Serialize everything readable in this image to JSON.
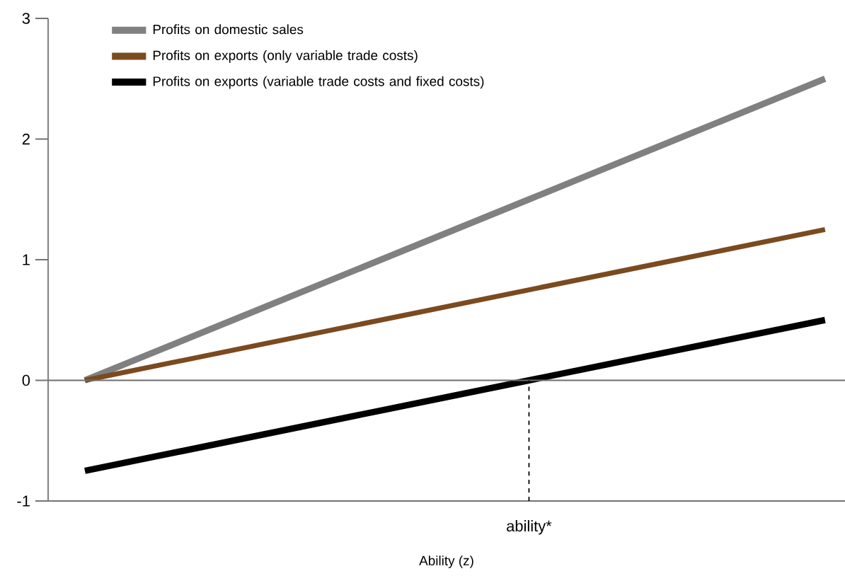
{
  "chart_data": {
    "type": "line",
    "xlabel": "Ability (z)",
    "categories": [
      null,
      null,
      null,
      "ability*",
      null,
      null
    ],
    "series": [
      {
        "name": "Profits on domestic sales",
        "color": "#808080",
        "values": [
          0,
          0.5,
          1,
          1.5,
          2,
          2.5
        ]
      },
      {
        "name": "Profits on exports (only variable trade costs)",
        "color": "#7b4a1e",
        "values": [
          0,
          0.25,
          0.5,
          0.75,
          1,
          1.25
        ]
      },
      {
        "name": "Profits on exports (variable trade costs and fixed costs)",
        "color": "#000000",
        "values": [
          -0.75,
          -0.5,
          -0.25,
          0,
          0.25,
          0.5
        ]
      }
    ],
    "ylim": [
      -1,
      3
    ],
    "yticks": [
      -1,
      0,
      1,
      2,
      3
    ],
    "ref_lines": [
      {
        "axis": "y",
        "value": 0,
        "color": "#6e6e6e",
        "line_style": "solid"
      },
      {
        "axis": "x",
        "value": "ability*",
        "color": "#000000",
        "line_style": "dashed"
      }
    ],
    "grid": false,
    "legend": "top left",
    "marker": "none",
    "line_style": "solid"
  }
}
